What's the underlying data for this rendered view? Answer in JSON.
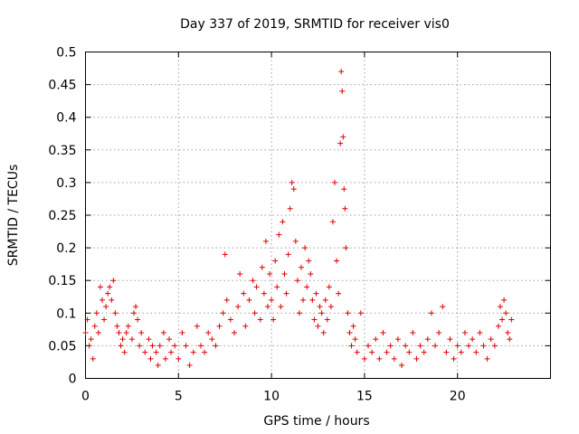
{
  "chart_data": {
    "type": "scatter",
    "title": "Day 337 of 2019, SRMTID for receiver vis0",
    "xlabel": "GPS time / hours",
    "ylabel": "SRMTID / TECUs",
    "xlim": [
      0,
      25
    ],
    "ylim": [
      0,
      0.5
    ],
    "grid": true,
    "marker": "plus",
    "marker_color": "#e00000",
    "x_ticks": [
      0,
      5,
      10,
      15,
      20
    ],
    "y_ticks": [
      0,
      0.05,
      0.1,
      0.15,
      0.2,
      0.25,
      0.3,
      0.35,
      0.4,
      0.45,
      0.5
    ],
    "x_tick_labels": [
      "0",
      "5",
      "10",
      "15",
      "20"
    ],
    "y_tick_labels": [
      "0",
      "0.05",
      "0.1",
      "0.15",
      "0.2",
      "0.25",
      "0.3",
      "0.35",
      "0.4",
      "0.45",
      "0.5"
    ],
    "series": [
      {
        "name": "vis0",
        "points": [
          [
            0.0,
            0.07
          ],
          [
            0.1,
            0.09
          ],
          [
            0.2,
            0.05
          ],
          [
            0.3,
            0.06
          ],
          [
            0.4,
            0.03
          ],
          [
            0.5,
            0.08
          ],
          [
            0.6,
            0.1
          ],
          [
            0.7,
            0.07
          ],
          [
            0.8,
            0.14
          ],
          [
            0.9,
            0.12
          ],
          [
            1.0,
            0.09
          ],
          [
            1.1,
            0.11
          ],
          [
            1.2,
            0.13
          ],
          [
            1.3,
            0.14
          ],
          [
            1.4,
            0.12
          ],
          [
            1.5,
            0.15
          ],
          [
            1.6,
            0.1
          ],
          [
            1.7,
            0.08
          ],
          [
            1.8,
            0.07
          ],
          [
            1.9,
            0.05
          ],
          [
            2.0,
            0.06
          ],
          [
            2.1,
            0.04
          ],
          [
            2.2,
            0.07
          ],
          [
            2.3,
            0.08
          ],
          [
            2.5,
            0.06
          ],
          [
            2.6,
            0.1
          ],
          [
            2.7,
            0.11
          ],
          [
            2.8,
            0.09
          ],
          [
            2.9,
            0.05
          ],
          [
            3.0,
            0.07
          ],
          [
            3.2,
            0.04
          ],
          [
            3.4,
            0.06
          ],
          [
            3.5,
            0.03
          ],
          [
            3.6,
            0.05
          ],
          [
            3.8,
            0.04
          ],
          [
            3.9,
            0.02
          ],
          [
            4.0,
            0.05
          ],
          [
            4.2,
            0.07
          ],
          [
            4.3,
            0.03
          ],
          [
            4.5,
            0.06
          ],
          [
            4.6,
            0.04
          ],
          [
            4.8,
            0.05
          ],
          [
            5.0,
            0.03
          ],
          [
            5.2,
            0.07
          ],
          [
            5.4,
            0.05
          ],
          [
            5.6,
            0.02
          ],
          [
            5.8,
            0.04
          ],
          [
            6.0,
            0.08
          ],
          [
            6.2,
            0.05
          ],
          [
            6.4,
            0.04
          ],
          [
            6.6,
            0.07
          ],
          [
            6.8,
            0.06
          ],
          [
            7.0,
            0.05
          ],
          [
            7.2,
            0.08
          ],
          [
            7.4,
            0.1
          ],
          [
            7.5,
            0.19
          ],
          [
            7.6,
            0.12
          ],
          [
            7.8,
            0.09
          ],
          [
            8.0,
            0.07
          ],
          [
            8.2,
            0.11
          ],
          [
            8.3,
            0.16
          ],
          [
            8.5,
            0.13
          ],
          [
            8.6,
            0.08
          ],
          [
            8.8,
            0.12
          ],
          [
            9.0,
            0.15
          ],
          [
            9.1,
            0.1
          ],
          [
            9.2,
            0.14
          ],
          [
            9.4,
            0.09
          ],
          [
            9.5,
            0.17
          ],
          [
            9.6,
            0.13
          ],
          [
            9.7,
            0.21
          ],
          [
            9.8,
            0.11
          ],
          [
            9.9,
            0.16
          ],
          [
            10.0,
            0.12
          ],
          [
            10.1,
            0.09
          ],
          [
            10.2,
            0.18
          ],
          [
            10.3,
            0.14
          ],
          [
            10.4,
            0.22
          ],
          [
            10.5,
            0.11
          ],
          [
            10.6,
            0.24
          ],
          [
            10.7,
            0.16
          ],
          [
            10.8,
            0.13
          ],
          [
            10.9,
            0.19
          ],
          [
            11.0,
            0.26
          ],
          [
            11.1,
            0.3
          ],
          [
            11.2,
            0.29
          ],
          [
            11.3,
            0.21
          ],
          [
            11.4,
            0.15
          ],
          [
            11.5,
            0.1
          ],
          [
            11.6,
            0.17
          ],
          [
            11.7,
            0.12
          ],
          [
            11.8,
            0.2
          ],
          [
            11.9,
            0.14
          ],
          [
            12.0,
            0.18
          ],
          [
            12.1,
            0.16
          ],
          [
            12.2,
            0.12
          ],
          [
            12.3,
            0.09
          ],
          [
            12.4,
            0.13
          ],
          [
            12.5,
            0.08
          ],
          [
            12.6,
            0.11
          ],
          [
            12.7,
            0.1
          ],
          [
            12.8,
            0.07
          ],
          [
            12.9,
            0.12
          ],
          [
            13.0,
            0.09
          ],
          [
            13.1,
            0.14
          ],
          [
            13.2,
            0.11
          ],
          [
            13.3,
            0.24
          ],
          [
            13.4,
            0.3
          ],
          [
            13.5,
            0.18
          ],
          [
            13.6,
            0.13
          ],
          [
            13.7,
            0.36
          ],
          [
            13.75,
            0.47
          ],
          [
            13.8,
            0.44
          ],
          [
            13.85,
            0.37
          ],
          [
            13.9,
            0.29
          ],
          [
            13.95,
            0.26
          ],
          [
            14.0,
            0.2
          ],
          [
            14.1,
            0.1
          ],
          [
            14.2,
            0.07
          ],
          [
            14.3,
            0.05
          ],
          [
            14.4,
            0.08
          ],
          [
            14.5,
            0.06
          ],
          [
            14.6,
            0.04
          ],
          [
            14.8,
            0.1
          ],
          [
            15.0,
            0.03
          ],
          [
            15.2,
            0.05
          ],
          [
            15.4,
            0.04
          ],
          [
            15.6,
            0.06
          ],
          [
            15.8,
            0.03
          ],
          [
            16.0,
            0.07
          ],
          [
            16.2,
            0.04
          ],
          [
            16.4,
            0.05
          ],
          [
            16.6,
            0.03
          ],
          [
            16.8,
            0.06
          ],
          [
            17.0,
            0.02
          ],
          [
            17.2,
            0.05
          ],
          [
            17.4,
            0.04
          ],
          [
            17.6,
            0.07
          ],
          [
            17.8,
            0.03
          ],
          [
            18.0,
            0.05
          ],
          [
            18.2,
            0.04
          ],
          [
            18.4,
            0.06
          ],
          [
            18.6,
            0.1
          ],
          [
            18.8,
            0.05
          ],
          [
            19.0,
            0.07
          ],
          [
            19.2,
            0.11
          ],
          [
            19.4,
            0.04
          ],
          [
            19.6,
            0.06
          ],
          [
            19.8,
            0.03
          ],
          [
            20.0,
            0.05
          ],
          [
            20.2,
            0.04
          ],
          [
            20.4,
            0.07
          ],
          [
            20.6,
            0.05
          ],
          [
            20.8,
            0.06
          ],
          [
            21.0,
            0.04
          ],
          [
            21.2,
            0.07
          ],
          [
            21.4,
            0.05
          ],
          [
            21.6,
            0.03
          ],
          [
            21.8,
            0.06
          ],
          [
            22.0,
            0.05
          ],
          [
            22.2,
            0.08
          ],
          [
            22.3,
            0.11
          ],
          [
            22.4,
            0.09
          ],
          [
            22.5,
            0.12
          ],
          [
            22.6,
            0.1
          ],
          [
            22.7,
            0.07
          ],
          [
            22.8,
            0.06
          ],
          [
            22.9,
            0.09
          ]
        ]
      }
    ]
  }
}
